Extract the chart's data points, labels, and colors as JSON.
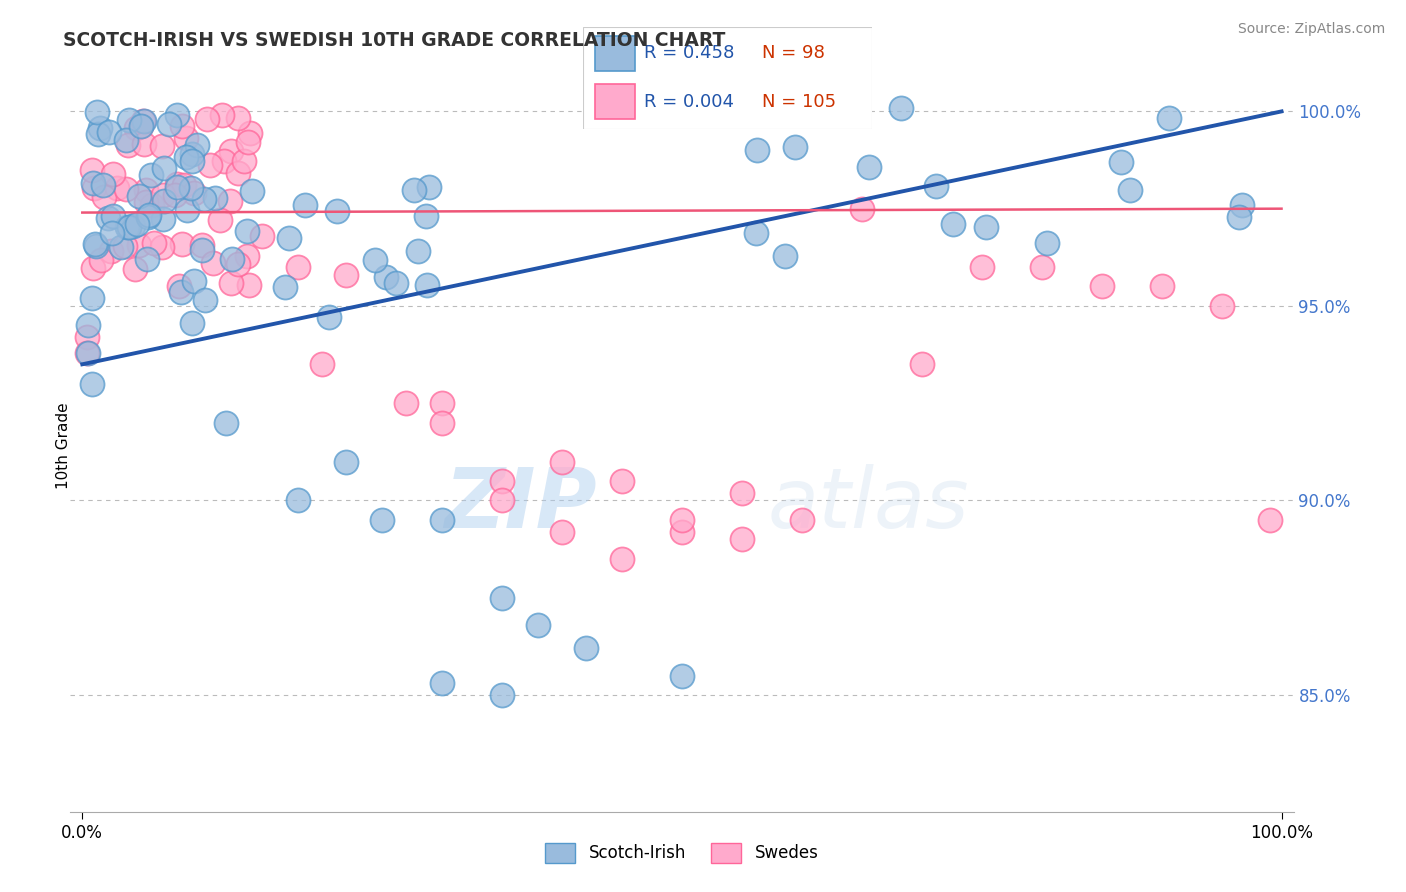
{
  "title": "SCOTCH-IRISH VS SWEDISH 10TH GRADE CORRELATION CHART",
  "source_text": "Source: ZipAtlas.com",
  "ylabel": "10th Grade",
  "right_yticks": [
    "100.0%",
    "95.0%",
    "90.0%",
    "85.0%"
  ],
  "right_ytick_vals": [
    1.0,
    0.95,
    0.9,
    0.85
  ],
  "xlim": [
    0.0,
    1.0
  ],
  "ylim": [
    0.82,
    1.008
  ],
  "blue_color": "#99BBDD",
  "pink_color": "#FFAACC",
  "blue_edge": "#5599CC",
  "pink_edge": "#FF6699",
  "legend_blue_R": "0.458",
  "legend_blue_N": "98",
  "legend_pink_R": "0.004",
  "legend_pink_N": "105",
  "blue_line_color": "#2255AA",
  "pink_line_color": "#EE5577",
  "watermark_zip": "ZIP",
  "watermark_atlas": "atlas",
  "blue_line_x0": 0.0,
  "blue_line_y0": 0.935,
  "blue_line_x1": 1.0,
  "blue_line_y1": 1.0,
  "pink_line_x0": 0.0,
  "pink_line_y0": 0.974,
  "pink_line_x1": 1.0,
  "pink_line_y1": 0.975
}
